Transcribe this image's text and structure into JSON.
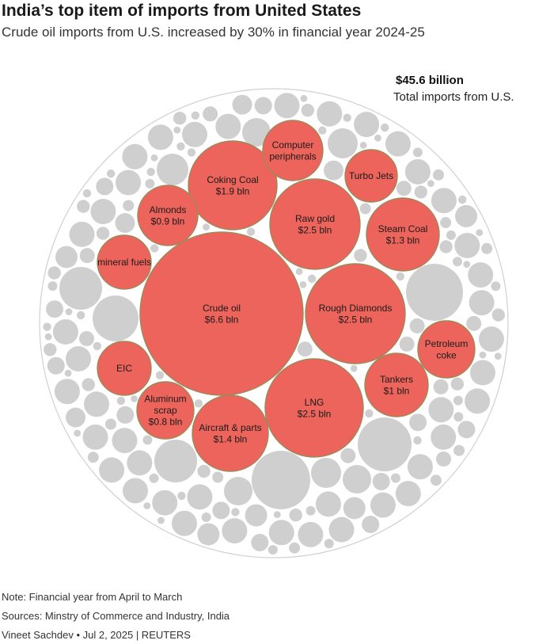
{
  "title": "India’s top item of imports from United States",
  "subtitle": "Crude oil imports from U.S. increased by 30% in financial year 2024-25",
  "total": {
    "value": "$45.6 billion",
    "label": "Total imports from U.S."
  },
  "chart_data": {
    "type": "bubble",
    "total": "$45.6 billion",
    "total_label": "Total imports from U.S.",
    "items": [
      {
        "name": "Crude oil",
        "value_label": "$6.6 bln",
        "value": 6.6
      },
      {
        "name": "Raw gold",
        "value_label": "$2.5 bln",
        "value": 2.5
      },
      {
        "name": "Rough Diamonds",
        "value_label": "$2.5 bln",
        "value": 2.5
      },
      {
        "name": "LNG",
        "value_label": "$2.5 bln",
        "value": 2.5
      },
      {
        "name": "Coking Coal",
        "value_label": "$1.9 bln",
        "value": 1.9
      },
      {
        "name": "Aircraft & parts",
        "value_label": "$1.4 bln",
        "value": 1.4
      },
      {
        "name": "Steam Coal",
        "value_label": "$1.3 bln",
        "value": 1.3
      },
      {
        "name": "Tankers",
        "value_label": "$1 bln",
        "value": 1.0
      },
      {
        "name": "Almonds",
        "value_label": "$0.9 bln",
        "value": 0.9
      },
      {
        "name": "Aluminum scrap",
        "value_label": "$0.8 bln",
        "value": 0.8
      },
      {
        "name": "Computer peripherals",
        "value_label": ""
      },
      {
        "name": "Turbo Jets",
        "value_label": ""
      },
      {
        "name": "mineral fuels",
        "value_label": ""
      },
      {
        "name": "EIC",
        "value_label": ""
      },
      {
        "name": "Petroleum coke",
        "value_label": ""
      }
    ],
    "colors": {
      "highlight": "#ec645b",
      "highlight_stroke": "#9c8a5a",
      "other": "#cfcfcf",
      "outer_ring": "#d0d0d0"
    }
  },
  "footer": {
    "note": "Note: Financial year from April to March",
    "sources": "Sources: Minstry of Commerce and Industry, India",
    "credit": "Vineet Sachdev • Jul 2, 2025 | REUTERS"
  }
}
